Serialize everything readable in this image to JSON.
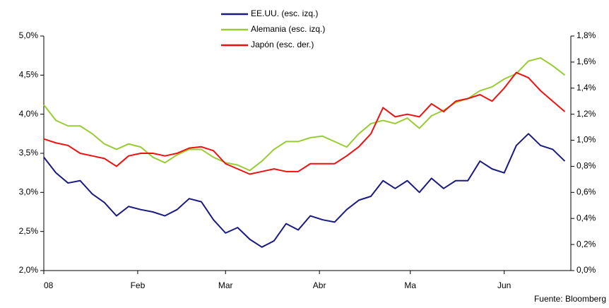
{
  "chart_data": {
    "type": "line",
    "source": "Fuente: Bloomberg",
    "x": [
      0,
      4,
      8,
      12,
      16,
      20,
      24,
      28,
      32,
      36,
      40,
      44,
      48,
      52,
      56,
      60,
      64,
      68,
      72,
      76,
      80,
      84,
      88,
      92,
      96,
      100,
      104,
      108,
      112,
      116,
      120,
      124,
      128,
      132,
      136,
      140,
      144,
      148,
      152,
      156,
      160,
      164,
      168,
      172
    ],
    "xlim": [
      0,
      174
    ],
    "xticks": [
      {
        "value": 0,
        "label": "08"
      },
      {
        "value": 31,
        "label": "Feb"
      },
      {
        "value": 60,
        "label": "Mar"
      },
      {
        "value": 91,
        "label": "Abr"
      },
      {
        "value": 121,
        "label": "Ma"
      },
      {
        "value": 152,
        "label": "Jun"
      }
    ],
    "ylim": [
      2.0,
      5.0
    ],
    "yticks": [
      {
        "value": 2.0,
        "label": "2,0%"
      },
      {
        "value": 2.5,
        "label": "2,5%"
      },
      {
        "value": 3.0,
        "label": "3,0%"
      },
      {
        "value": 3.5,
        "label": "3,5%"
      },
      {
        "value": 4.0,
        "label": "4,0%"
      },
      {
        "value": 4.5,
        "label": "4,5%"
      },
      {
        "value": 5.0,
        "label": "5,0%"
      }
    ],
    "y2lim": [
      0.0,
      1.8
    ],
    "y2ticks": [
      {
        "value": 0.0,
        "label": "0,0%"
      },
      {
        "value": 0.2,
        "label": "0,2%"
      },
      {
        "value": 0.4,
        "label": "0,4%"
      },
      {
        "value": 0.6,
        "label": "0,6%"
      },
      {
        "value": 0.8,
        "label": "0,8%"
      },
      {
        "value": 1.0,
        "label": "1,0%"
      },
      {
        "value": 1.2,
        "label": "1,2%"
      },
      {
        "value": 1.4,
        "label": "1,4%"
      },
      {
        "value": 1.6,
        "label": "1,6%"
      },
      {
        "value": 1.8,
        "label": "1,8%"
      }
    ],
    "grid": false,
    "legend": "top",
    "series": [
      {
        "name": "EE.UU. (esc. izq.)",
        "color": "#1a1a80",
        "values": [
          3.45,
          3.25,
          3.12,
          3.15,
          2.98,
          2.87,
          2.7,
          2.82,
          2.78,
          2.75,
          2.7,
          2.78,
          2.92,
          2.88,
          2.65,
          2.48,
          2.55,
          2.4,
          2.3,
          2.38,
          2.6,
          2.52,
          2.7,
          2.65,
          2.62,
          2.78,
          2.9,
          2.95,
          3.15,
          3.05,
          3.15,
          3.0,
          3.18,
          3.05,
          3.15,
          3.15,
          3.4,
          3.3,
          3.25,
          3.6,
          3.75,
          3.6,
          3.55,
          3.4
        ]
      },
      {
        "name": "Alemania (esc. izq.)",
        "color": "#99cc33",
        "values": [
          4.12,
          3.92,
          3.85,
          3.85,
          3.75,
          3.62,
          3.55,
          3.62,
          3.58,
          3.45,
          3.38,
          3.48,
          3.55,
          3.55,
          3.45,
          3.38,
          3.35,
          3.28,
          3.4,
          3.55,
          3.65,
          3.65,
          3.7,
          3.72,
          3.65,
          3.58,
          3.75,
          3.88,
          3.92,
          3.88,
          3.95,
          3.82,
          3.98,
          4.05,
          4.15,
          4.2,
          4.3,
          4.35,
          4.45,
          4.52,
          4.68,
          4.72,
          4.62,
          4.5
        ]
      },
      {
        "name": "Japón (esc. der.)",
        "color": "#ee1111",
        "axis": "y2",
        "values": [
          1.01,
          0.98,
          0.96,
          0.9,
          0.88,
          0.86,
          0.8,
          0.88,
          0.9,
          0.9,
          0.88,
          0.9,
          0.94,
          0.95,
          0.92,
          0.82,
          0.78,
          0.74,
          0.76,
          0.78,
          0.76,
          0.76,
          0.82,
          0.82,
          0.82,
          0.88,
          0.95,
          1.05,
          1.25,
          1.18,
          1.2,
          1.18,
          1.28,
          1.22,
          1.3,
          1.32,
          1.35,
          1.3,
          1.4,
          1.52,
          1.48,
          1.38,
          1.3,
          1.22
        ]
      }
    ]
  }
}
